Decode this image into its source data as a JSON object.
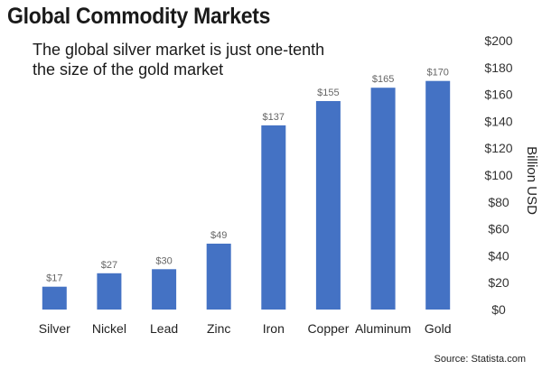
{
  "title": "Global Commodity Markets",
  "subtitle": "The global silver market is just one-tenth the size of the gold market",
  "source": "Source: Statista.com",
  "chart_data": {
    "type": "bar",
    "categories": [
      "Silver",
      "Nickel",
      "Lead",
      "Zinc",
      "Iron",
      "Copper",
      "Aluminum",
      "Gold"
    ],
    "values": [
      17,
      27,
      30,
      49,
      137,
      155,
      165,
      170
    ],
    "data_labels": [
      "$17",
      "$27",
      "$30",
      "$49",
      "$137",
      "$155",
      "$165",
      "$170"
    ],
    "ylabel": "Billion USD",
    "ylim": [
      0,
      200
    ],
    "yticks": [
      0,
      20,
      40,
      60,
      80,
      100,
      120,
      140,
      160,
      180,
      200
    ],
    "ytick_labels": [
      "$0",
      "$20",
      "$40",
      "$60",
      "$80",
      "$100",
      "$120",
      "$140",
      "$160",
      "$180",
      "$200"
    ],
    "y_axis_position": "right",
    "grid": false,
    "bar_color": "#4472c4"
  }
}
